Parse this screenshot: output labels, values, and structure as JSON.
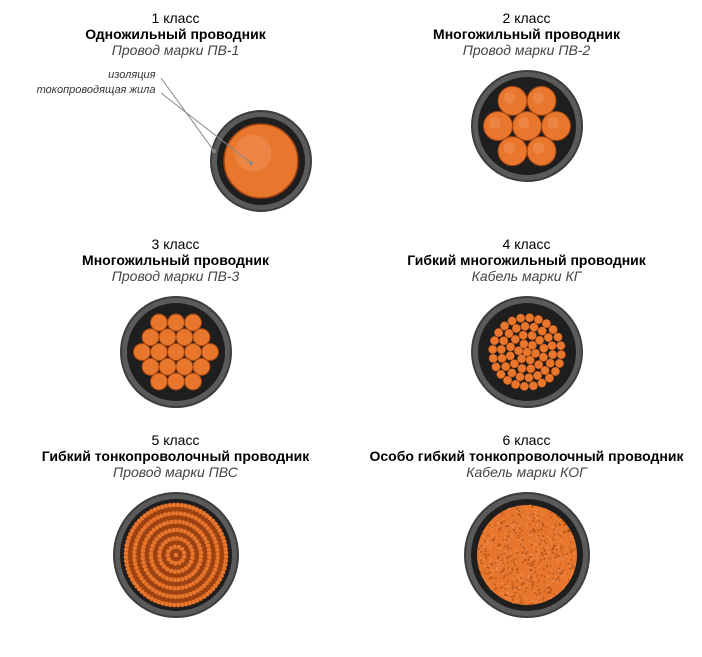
{
  "colors": {
    "outer_ring": "#5a5a5a",
    "outer_ring_edge": "#3d3d3d",
    "black_fill": "#1e1e1e",
    "copper": "#e8762c",
    "copper_edge": "#9c4212",
    "copper_light": "#f0945a",
    "annotation_line": "#888888"
  },
  "cells": [
    {
      "class_label": "1 класс",
      "desc": "Одножильный проводник",
      "brand": "Провод марки ПВ-1",
      "type": "single",
      "outer_r": 50,
      "inner_r": 37,
      "annotations": [
        {
          "text": "изоляция",
          "line": "iso"
        },
        {
          "text": "токопроводящая жила",
          "line": "core"
        }
      ]
    },
    {
      "class_label": "2 класс",
      "desc": "Многожильный проводник",
      "brand": "Провод марки ПВ-2",
      "type": "seven",
      "outer_r": 55,
      "inner_r": 45,
      "strand_r": 14.5
    },
    {
      "class_label": "3 класс",
      "desc": "Многожильный проводник",
      "brand": "Провод марки ПВ-3",
      "type": "nineteen",
      "outer_r": 55,
      "inner_r": 45,
      "strand_r": 8.5
    },
    {
      "class_label": "4 класс",
      "desc": "Гибкий многожильный проводник",
      "brand": "Кабель марки КГ",
      "type": "many",
      "outer_r": 55,
      "inner_r": 45,
      "strand_r": 4.3,
      "rings": 5
    },
    {
      "class_label": "5 класс",
      "desc": "Гибкий тонкопроволочный проводник",
      "brand": "Провод марки ПВС",
      "type": "finewire",
      "outer_r": 62,
      "inner_r": 50,
      "turns": 6
    },
    {
      "class_label": "6 класс",
      "desc": "Особо гибкий тонкопроволочный проводник",
      "brand": "Кабель марки КОГ",
      "type": "ultrafine",
      "outer_r": 62,
      "inner_r": 50
    }
  ]
}
